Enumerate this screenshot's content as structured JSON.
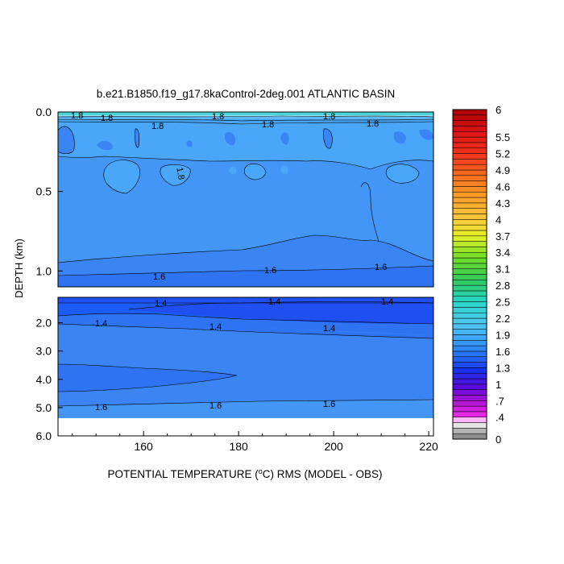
{
  "chart_data": {
    "type": "heatmap",
    "title": "b.e21.B1850.f19_g17.8kaControl-2deg.001 ATLANTIC BASIN",
    "xlabel_parts": [
      "POTENTIAL TEMPERATURE (",
      "o",
      "C) RMS (MODEL - OBS)"
    ],
    "ylabel": "DEPTH (km)",
    "x_range": [
      142,
      221
    ],
    "x_ticks": [
      160,
      180,
      200,
      220
    ],
    "top_panel": {
      "y_range_km": [
        0.0,
        1.1
      ],
      "y_ticks": [
        0.0,
        0.5,
        1.0
      ],
      "y_tick_labels": [
        "0.0",
        "0.5",
        "1.0"
      ],
      "contour_labels": [
        "1.8",
        "1.8",
        "1.8",
        "1.8",
        "1.8",
        "1.8",
        "1.8",
        "1.8",
        "1.6",
        "1.6",
        "1.6"
      ]
    },
    "bottom_panel": {
      "y_range_km": [
        1.1,
        6.0
      ],
      "y_ticks": [
        2.0,
        3.0,
        4.0,
        5.0,
        6.0
      ],
      "y_tick_labels": [
        "2.0",
        "3.0",
        "4.0",
        "5.0",
        "6.0"
      ],
      "data_max_depth_km": 5.35,
      "contour_labels": [
        "1.4",
        "1.4",
        "1.4",
        "1.4",
        "1.4",
        "1.4",
        "1.6",
        "1.6",
        "1.6"
      ]
    },
    "colorbar": {
      "levels": [
        0,
        0.1,
        0.2,
        0.3,
        0.4,
        0.5,
        0.6,
        0.7,
        0.8,
        0.9,
        1.0,
        1.1,
        1.2,
        1.3,
        1.4,
        1.5,
        1.6,
        1.7,
        1.8,
        1.9,
        2.0,
        2.1,
        2.2,
        2.3,
        2.4,
        2.5,
        2.6,
        2.7,
        2.8,
        2.9,
        3.0,
        3.1,
        3.2,
        3.3,
        3.4,
        3.5,
        3.6,
        3.7,
        3.8,
        3.9,
        4.0,
        4.1,
        4.2,
        4.3,
        4.4,
        4.5,
        4.6,
        4.7,
        4.8,
        4.9,
        5.0,
        5.1,
        5.2,
        5.3,
        5.4,
        5.5,
        5.6,
        5.7,
        5.8,
        5.9,
        6.0
      ],
      "tick_labels": [
        "0",
        ".4",
        ".7",
        "1",
        "1.3",
        "1.6",
        "1.9",
        "2.2",
        "2.5",
        "2.8",
        "3.1",
        "3.4",
        "3.7",
        "4",
        "4.3",
        "4.6",
        "4.9",
        "5.2",
        "5.5",
        "6"
      ],
      "tick_values": [
        0,
        0.4,
        0.7,
        1.0,
        1.3,
        1.6,
        1.9,
        2.2,
        2.5,
        2.8,
        3.1,
        3.4,
        3.7,
        4.0,
        4.3,
        4.6,
        4.9,
        5.2,
        5.5,
        6.0
      ]
    },
    "colors": {
      "c_1_3": "#1f4ff0",
      "c_1_4": "#1a5cf5",
      "c_1_5": "#2e74f2",
      "c_1_6": "#3a84f4",
      "c_1_7": "#4496f6",
      "c_1_8": "#49a6f9",
      "c_1_9": "#5ab8fb",
      "c_missing": "#ffffff"
    }
  }
}
